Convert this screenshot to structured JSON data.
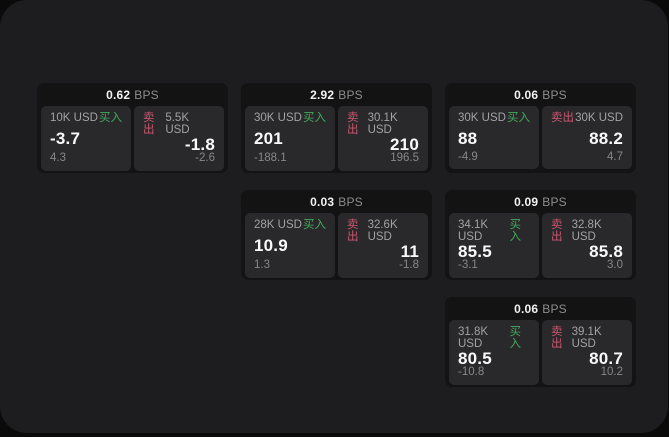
{
  "labels": {
    "bps_unit": "BPS",
    "buy": "买入",
    "sell": "卖出"
  },
  "colors": {
    "buy_green": "#43a95c",
    "sell_red": "#cd5670",
    "surface": "#1d1d1f",
    "card_background": "#131314",
    "panel_background": "#29292b"
  },
  "cards": [
    {
      "bps": "0.62",
      "buy": {
        "amount": "10K USD",
        "price": "-3.7",
        "change": "4.3"
      },
      "sell": {
        "amount": "5.5K USD",
        "price": "-1.8",
        "change": "-2.6"
      }
    },
    {
      "bps": "2.92",
      "buy": {
        "amount": "30K USD",
        "price": "201",
        "change": "-188.1"
      },
      "sell": {
        "amount": "30.1K USD",
        "price": "210",
        "change": "196.5"
      }
    },
    {
      "bps": "0.06",
      "buy": {
        "amount": "30K USD",
        "price": "88",
        "change": "-4.9"
      },
      "sell": {
        "amount": "30K USD",
        "price": "88.2",
        "change": "4.7"
      }
    },
    {
      "bps": "0.03",
      "buy": {
        "amount": "28K USD",
        "price": "10.9",
        "change": "1.3"
      },
      "sell": {
        "amount": "32.6K USD",
        "price": "11",
        "change": "-1.8"
      }
    },
    {
      "bps": "0.09",
      "buy": {
        "amount": "34.1K USD",
        "price": "85.5",
        "change": "-3.1"
      },
      "sell": {
        "amount": "32.8K USD",
        "price": "85.8",
        "change": "3.0"
      }
    },
    {
      "bps": "0.06",
      "buy": {
        "amount": "31.8K USD",
        "price": "80.5",
        "change": "-10.8"
      },
      "sell": {
        "amount": "39.1K USD",
        "price": "80.7",
        "change": "10.2"
      }
    }
  ]
}
